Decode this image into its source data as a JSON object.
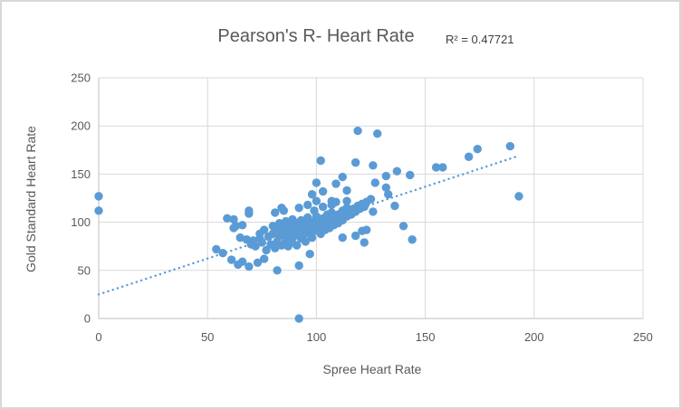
{
  "window": {
    "background": "#FFFFFF",
    "border_color": "#D8D8D8"
  },
  "chart_data": {
    "type": "scatter",
    "title": "Pearson's R- Heart Rate",
    "annotation": "R² = 0.47721",
    "xlabel": "Spree Heart Rate",
    "ylabel": "Gold Standard Heart Rate",
    "xlim": [
      0,
      250
    ],
    "ylim": [
      0,
      250
    ],
    "xticks": [
      0,
      50,
      100,
      150,
      200,
      250
    ],
    "yticks": [
      0,
      50,
      100,
      150,
      200,
      250
    ],
    "grid": true,
    "legend": false,
    "colors": {
      "marker": "#5B9BD5",
      "trendline": "#5B9BD5",
      "gridline": "#D9D9D9",
      "axis_line": "#BFBFBF",
      "text": "#595959"
    },
    "marker_radius": 4.7,
    "trendline": {
      "style": "dotted",
      "x1": 0,
      "y1": 25,
      "x2": 193,
      "y2": 169
    },
    "points": [
      [
        0,
        127
      ],
      [
        0,
        112
      ],
      [
        54,
        72
      ],
      [
        57,
        68
      ],
      [
        59,
        104
      ],
      [
        62,
        103
      ],
      [
        62,
        94
      ],
      [
        63,
        96
      ],
      [
        66,
        97
      ],
      [
        65,
        84
      ],
      [
        68,
        82
      ],
      [
        70,
        77
      ],
      [
        71,
        81
      ],
      [
        74,
        83
      ],
      [
        69,
        109
      ],
      [
        69,
        112
      ],
      [
        61,
        61
      ],
      [
        64,
        56
      ],
      [
        66,
        59
      ],
      [
        69,
        54
      ],
      [
        73,
        58
      ],
      [
        76,
        62
      ],
      [
        82,
        50
      ],
      [
        92,
        55
      ],
      [
        97,
        67
      ],
      [
        92,
        0
      ],
      [
        72,
        75
      ],
      [
        74,
        88
      ],
      [
        75,
        79
      ],
      [
        76,
        92
      ],
      [
        77,
        71
      ],
      [
        78,
        85
      ],
      [
        79,
        77
      ],
      [
        80,
        96
      ],
      [
        80,
        88
      ],
      [
        81,
        73
      ],
      [
        82,
        92
      ],
      [
        82,
        80
      ],
      [
        83,
        99
      ],
      [
        83,
        86
      ],
      [
        84,
        76
      ],
      [
        85,
        95
      ],
      [
        85,
        88
      ],
      [
        86,
        81
      ],
      [
        86,
        101
      ],
      [
        87,
        91
      ],
      [
        87,
        75
      ],
      [
        88,
        97
      ],
      [
        88,
        85
      ],
      [
        89,
        79
      ],
      [
        89,
        103
      ],
      [
        90,
        92
      ],
      [
        90,
        86
      ],
      [
        91,
        99
      ],
      [
        91,
        76
      ],
      [
        92,
        89
      ],
      [
        92,
        96
      ],
      [
        93,
        83
      ],
      [
        93,
        102
      ],
      [
        94,
        92
      ],
      [
        94,
        87
      ],
      [
        95,
        98
      ],
      [
        95,
        80
      ],
      [
        96,
        105
      ],
      [
        96,
        92
      ],
      [
        97,
        88
      ],
      [
        97,
        101
      ],
      [
        98,
        95
      ],
      [
        98,
        84
      ],
      [
        99,
        99
      ],
      [
        99,
        91
      ],
      [
        100,
        106
      ],
      [
        100,
        96
      ],
      [
        101,
        93
      ],
      [
        101,
        101
      ],
      [
        102,
        98
      ],
      [
        102,
        88
      ],
      [
        103,
        104
      ],
      [
        103,
        96
      ],
      [
        104,
        100
      ],
      [
        104,
        92
      ],
      [
        105,
        108
      ],
      [
        105,
        98
      ],
      [
        106,
        103
      ],
      [
        106,
        94
      ],
      [
        107,
        100
      ],
      [
        107,
        110
      ],
      [
        108,
        97
      ],
      [
        108,
        105
      ],
      [
        109,
        102
      ],
      [
        110,
        108
      ],
      [
        110,
        99
      ],
      [
        111,
        105
      ],
      [
        112,
        112
      ],
      [
        112,
        102
      ],
      [
        113,
        109
      ],
      [
        114,
        106
      ],
      [
        114,
        115
      ],
      [
        115,
        111
      ],
      [
        116,
        108
      ],
      [
        117,
        114
      ],
      [
        118,
        111
      ],
      [
        119,
        117
      ],
      [
        120,
        114
      ],
      [
        121,
        119
      ],
      [
        122,
        116
      ],
      [
        123,
        121
      ],
      [
        125,
        124
      ],
      [
        81,
        110
      ],
      [
        84,
        115
      ],
      [
        85,
        112
      ],
      [
        92,
        115
      ],
      [
        96,
        118
      ],
      [
        99,
        112
      ],
      [
        103,
        116
      ],
      [
        107,
        118
      ],
      [
        100,
        122
      ],
      [
        107,
        122
      ],
      [
        114,
        122
      ],
      [
        109,
        121
      ],
      [
        126,
        111
      ],
      [
        112,
        84
      ],
      [
        118,
        86
      ],
      [
        121,
        91
      ],
      [
        122,
        79
      ],
      [
        123,
        92
      ],
      [
        136,
        117
      ],
      [
        140,
        96
      ],
      [
        144,
        82
      ],
      [
        98,
        129
      ],
      [
        103,
        132
      ],
      [
        100,
        141
      ],
      [
        109,
        140
      ],
      [
        112,
        147
      ],
      [
        114,
        133
      ],
      [
        102,
        164
      ],
      [
        118,
        162
      ],
      [
        126,
        159
      ],
      [
        127,
        141
      ],
      [
        132,
        148
      ],
      [
        132,
        136
      ],
      [
        133,
        129
      ],
      [
        119,
        195
      ],
      [
        128,
        192
      ],
      [
        137,
        153
      ],
      [
        143,
        149
      ],
      [
        155,
        157
      ],
      [
        158,
        157
      ],
      [
        170,
        168
      ],
      [
        174,
        176
      ],
      [
        189,
        179
      ],
      [
        193,
        127
      ]
    ]
  }
}
